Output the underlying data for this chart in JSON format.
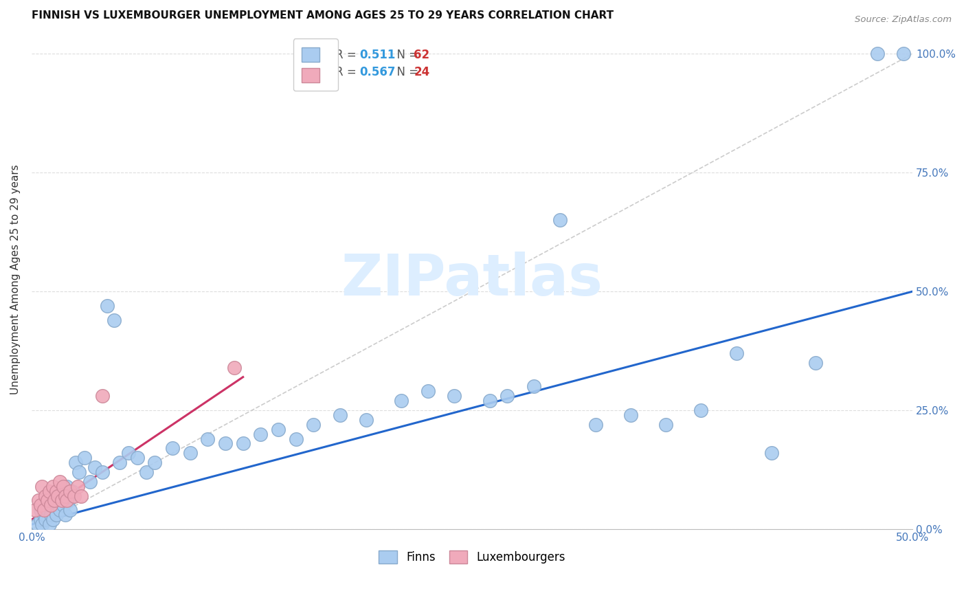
{
  "title": "FINNISH VS LUXEMBOURGER UNEMPLOYMENT AMONG AGES 25 TO 29 YEARS CORRELATION CHART",
  "source": "Source: ZipAtlas.com",
  "ylabel": "Unemployment Among Ages 25 to 29 years",
  "xlim": [
    0,
    0.5
  ],
  "ylim": [
    0,
    1.05
  ],
  "xticks": [
    0.0,
    0.5
  ],
  "xtick_labels": [
    "0.0%",
    "50.0%"
  ],
  "ytick_labels": [
    "0.0%",
    "25.0%",
    "50.0%",
    "75.0%",
    "100.0%"
  ],
  "yticks": [
    0.0,
    0.25,
    0.5,
    0.75,
    1.0
  ],
  "r_finns": 0.511,
  "n_finns": 62,
  "r_lux": 0.567,
  "n_lux": 24,
  "finns_color": "#aaccf0",
  "finns_edge_color": "#88aacc",
  "lux_color": "#f0aabb",
  "lux_edge_color": "#cc8899",
  "finns_line_color": "#2266cc",
  "lux_line_color": "#cc3366",
  "diag_color": "#cccccc",
  "watermark_color": "#ddeeff",
  "finns_line_x0": 0.0,
  "finns_line_y0": 0.01,
  "finns_line_x1": 0.5,
  "finns_line_y1": 0.5,
  "lux_line_x0": 0.0,
  "lux_line_y0": 0.02,
  "lux_line_x1": 0.12,
  "lux_line_y1": 0.32,
  "finns_x": [
    0.003,
    0.005,
    0.005,
    0.006,
    0.007,
    0.008,
    0.009,
    0.01,
    0.01,
    0.011,
    0.012,
    0.013,
    0.014,
    0.015,
    0.016,
    0.017,
    0.018,
    0.019,
    0.02,
    0.021,
    0.022,
    0.023,
    0.025,
    0.027,
    0.03,
    0.033,
    0.036,
    0.04,
    0.043,
    0.047,
    0.05,
    0.055,
    0.06,
    0.065,
    0.07,
    0.08,
    0.09,
    0.1,
    0.11,
    0.12,
    0.13,
    0.14,
    0.15,
    0.16,
    0.175,
    0.19,
    0.21,
    0.225,
    0.24,
    0.26,
    0.27,
    0.285,
    0.3,
    0.32,
    0.34,
    0.36,
    0.38,
    0.4,
    0.42,
    0.445,
    0.48,
    0.495
  ],
  "finns_y": [
    0.01,
    0.02,
    0.04,
    0.01,
    0.03,
    0.02,
    0.04,
    0.05,
    0.01,
    0.03,
    0.02,
    0.06,
    0.03,
    0.07,
    0.04,
    0.08,
    0.05,
    0.03,
    0.09,
    0.06,
    0.04,
    0.08,
    0.14,
    0.12,
    0.15,
    0.1,
    0.13,
    0.12,
    0.47,
    0.44,
    0.14,
    0.16,
    0.15,
    0.12,
    0.14,
    0.17,
    0.16,
    0.19,
    0.18,
    0.18,
    0.2,
    0.21,
    0.19,
    0.22,
    0.24,
    0.23,
    0.27,
    0.29,
    0.28,
    0.27,
    0.28,
    0.3,
    0.65,
    0.22,
    0.24,
    0.22,
    0.25,
    0.37,
    0.16,
    0.35,
    1.0,
    1.0
  ],
  "lux_x": [
    0.002,
    0.004,
    0.005,
    0.006,
    0.007,
    0.008,
    0.009,
    0.01,
    0.011,
    0.012,
    0.013,
    0.014,
    0.015,
    0.016,
    0.017,
    0.018,
    0.019,
    0.02,
    0.022,
    0.024,
    0.026,
    0.028,
    0.04,
    0.115
  ],
  "lux_y": [
    0.04,
    0.06,
    0.05,
    0.09,
    0.04,
    0.07,
    0.06,
    0.08,
    0.05,
    0.09,
    0.06,
    0.08,
    0.07,
    0.1,
    0.06,
    0.09,
    0.07,
    0.06,
    0.08,
    0.07,
    0.09,
    0.07,
    0.28,
    0.34
  ]
}
